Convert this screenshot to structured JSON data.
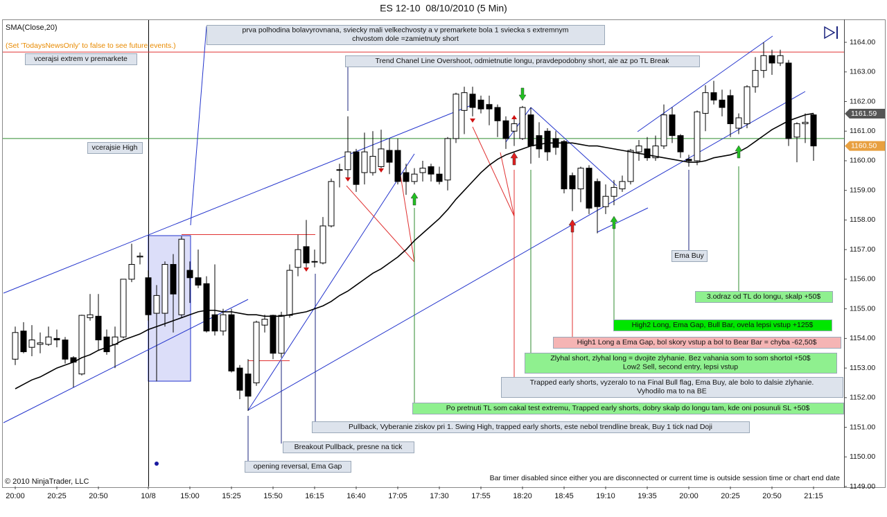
{
  "chart_data": {
    "type": "candlestick",
    "title": "ES 12-10  08/10/2010 (5 Min)",
    "notice": "(Set 'TodaysNewsOnly' to false to see future events.)",
    "copyright": "© 2010 NinjaTrader, LLC",
    "status_text": "Bar timer disabled since either you are disconnected or current time is outside session time or chart end date",
    "categories": [
      "20:00",
      null,
      null,
      null,
      null,
      "20:25",
      null,
      null,
      null,
      null,
      "20:50",
      null,
      null,
      null,
      null,
      null,
      "10/8",
      null,
      null,
      null,
      null,
      "15:00",
      null,
      null,
      null,
      null,
      "15:25",
      null,
      null,
      null,
      null,
      "15:50",
      null,
      null,
      null,
      null,
      "16:15",
      null,
      null,
      null,
      null,
      "16:40",
      null,
      null,
      null,
      null,
      "17:05",
      null,
      null,
      null,
      null,
      "17:30",
      null,
      null,
      null,
      null,
      "17:55",
      null,
      null,
      null,
      null,
      "18:20",
      null,
      null,
      null,
      null,
      "18:45",
      null,
      null,
      null,
      null,
      "19:10",
      null,
      null,
      null,
      null,
      "19:35",
      null,
      null,
      null,
      null,
      "20:00",
      null,
      null,
      null,
      null,
      "20:25",
      null,
      null,
      null,
      null,
      "20:50",
      null,
      null,
      null,
      null,
      "21:15"
    ],
    "open": [
      1153.3,
      1154.25,
      1153.7,
      1153.8,
      1153.8,
      1154.0,
      1153.95,
      1153.35,
      1152.8,
      1154.7,
      1154.75,
      1154.05,
      1153.8,
      1154.05,
      1156.0,
      1156.75,
      1156.05,
      1154.85,
      1154.85,
      1156.5,
      1154.8,
      1156.3,
      1156.05,
      1155.85,
      1154.8,
      1154.25,
      1154.8,
      1153.0,
      1152.8,
      1152.5,
      1154.45,
      1154.78,
      1153.5,
      1154.78,
      1156.4,
      1157.1,
      1156.6,
      1156.55,
      1157.8,
      1159.7,
      1159.7,
      1160.3,
      1159.6,
      1159.6,
      1159.8,
      1160.35,
      1160.35,
      1159.6,
      1159.3,
      1159.6,
      1159.8,
      1159.55,
      1159.35,
      1160.75,
      1161.7,
      1162.25,
      1162.05,
      1161.9,
      1161.8,
      1161.35,
      1161.0,
      1160.75,
      1161.55,
      1160.85,
      1161.0,
      1160.75,
      1160.65,
      1159.5,
      1159.05,
      1159.75,
      1159.3,
      1158.45,
      1158.8,
      1159.05,
      1159.3,
      1160.3,
      1160.4,
      1160.1,
      1160.5,
      1161.55,
      1160.85,
      1160.05,
      1160.0,
      1161.6,
      1162.3,
      1162.05,
      1162.2,
      1161.1,
      1161.25,
      1162.5,
      1163.05,
      1163.55,
      1163.3,
      1163.3,
      1160.8,
      1161.25,
      1161.55
    ],
    "high": [
      1154.4,
      1154.55,
      1154.45,
      1154.2,
      1154.4,
      1154.3,
      1154.05,
      1153.4,
      1154.8,
      1155.5,
      1155.5,
      1154.3,
      1154.4,
      1156.0,
      1157.2,
      1156.9,
      1156.3,
      1155.8,
      1156.6,
      1156.85,
      1157.45,
      1156.6,
      1157.0,
      1156.1,
      1156.5,
      1155.0,
      1155.0,
      1153.1,
      1153.3,
      1154.6,
      1154.8,
      1154.8,
      1154.9,
      1156.5,
      1157.5,
      1158.0,
      1157.0,
      1158.1,
      1159.4,
      1159.9,
      1161.5,
      1160.4,
      1160.95,
      1161.0,
      1161.05,
      1160.75,
      1160.75,
      1159.9,
      1159.75,
      1160.0,
      1159.9,
      1159.8,
      1160.8,
      1162.3,
      1162.5,
      1162.5,
      1162.2,
      1162.2,
      1161.9,
      1161.5,
      1161.5,
      1161.85,
      1161.8,
      1161.3,
      1161.1,
      1161.0,
      1160.7,
      1159.6,
      1159.8,
      1159.85,
      1159.4,
      1159.2,
      1159.35,
      1159.5,
      1160.4,
      1160.7,
      1160.8,
      1160.85,
      1161.9,
      1161.8,
      1160.9,
      1160.2,
      1161.7,
      1162.55,
      1162.7,
      1162.4,
      1162.4,
      1161.6,
      1162.55,
      1163.5,
      1164.0,
      1163.75,
      1163.75,
      1163.4,
      1161.3,
      1161.6,
      1161.6
    ],
    "low": [
      1153.1,
      1153.5,
      1153.4,
      1153.5,
      1153.75,
      1153.7,
      1153.15,
      1152.35,
      1152.75,
      1154.6,
      1153.6,
      1153.45,
      1153.0,
      1154.0,
      1155.9,
      1156.5,
      1154.6,
      1152.55,
      1154.4,
      1154.2,
      1154.7,
      1155.2,
      1155.7,
      1154.2,
      1154.1,
      1154.1,
      1152.85,
      1151.95,
      1151.55,
      1152.4,
      1154.2,
      1153.3,
      1153.35,
      1154.7,
      1156.1,
      1156.4,
      1156.4,
      1156.5,
      1157.75,
      1159.1,
      1159.4,
      1158.95,
      1159.2,
      1159.5,
      1159.75,
      1159.55,
      1159.2,
      1158.85,
      1159.2,
      1159.3,
      1159.3,
      1159.2,
      1159.0,
      1160.6,
      1160.9,
      1161.5,
      1161.6,
      1161.2,
      1160.8,
      1160.4,
      1160.5,
      1160.7,
      1159.9,
      1160.1,
      1160.0,
      1160.2,
      1158.9,
      1158.3,
      1158.6,
      1158.2,
      1157.55,
      1158.2,
      1158.5,
      1158.95,
      1159.2,
      1160.0,
      1160.0,
      1160.0,
      1160.4,
      1160.6,
      1160.1,
      1159.8,
      1159.85,
      1161.0,
      1161.9,
      1161.5,
      1160.8,
      1160.9,
      1161.1,
      1162.3,
      1162.8,
      1162.9,
      1163.2,
      1160.5,
      1159.95,
      1160.6,
      1160.0
    ],
    "close": [
      1154.2,
      1153.55,
      1153.95,
      1153.85,
      1154.05,
      1153.95,
      1153.3,
      1153.2,
      1154.78,
      1154.8,
      1153.95,
      1153.55,
      1154.05,
      1156.0,
      1156.5,
      1156.78,
      1154.8,
      1155.45,
      1156.5,
      1155.5,
      1157.35,
      1156.05,
      1155.8,
      1154.25,
      1154.25,
      1154.8,
      1152.9,
      1152.25,
      1152.05,
      1154.55,
      1154.65,
      1153.5,
      1154.78,
      1156.3,
      1157.0,
      1156.55,
      1156.6,
      1157.8,
      1159.3,
      1159.7,
      1160.3,
      1159.2,
      1160.3,
      1160.15,
      1160.4,
      1159.95,
      1159.3,
      1159.3,
      1159.55,
      1159.75,
      1159.55,
      1159.3,
      1160.75,
      1162.25,
      1162.3,
      1161.8,
      1161.75,
      1161.75,
      1161.35,
      1160.75,
      1161.25,
      1161.8,
      1160.5,
      1160.4,
      1160.3,
      1160.45,
      1159.05,
      1159.05,
      1159.75,
      1158.4,
      1158.45,
      1158.8,
      1159.1,
      1159.3,
      1160.35,
      1160.5,
      1160.1,
      1160.5,
      1161.55,
      1160.85,
      1160.3,
      1160.0,
      1161.65,
      1162.3,
      1162.05,
      1161.8,
      1161.25,
      1161.45,
      1162.5,
      1163.05,
      1163.55,
      1163.3,
      1163.55,
      1160.75,
      1161.25,
      1161.3,
      1160.5
    ],
    "up_color": "#ffffff",
    "down_color": "#000000",
    "series": [
      {
        "name": "SMA(Close,20)",
        "color": "#000000",
        "values": [
          1152.3,
          1152.45,
          1152.6,
          1152.7,
          1152.85,
          1153.0,
          1153.1,
          1153.2,
          1153.35,
          1153.45,
          1153.6,
          1153.7,
          1153.8,
          1153.95,
          1154.05,
          1154.15,
          1154.3,
          1154.4,
          1154.5,
          1154.6,
          1154.7,
          1154.8,
          1154.9,
          1154.95,
          1154.95,
          1154.9,
          1154.9,
          1154.85,
          1154.8,
          1154.8,
          1154.75,
          1154.75,
          1154.75,
          1154.8,
          1154.85,
          1154.9,
          1155.0,
          1155.1,
          1155.25,
          1155.45,
          1155.6,
          1155.8,
          1156.0,
          1156.2,
          1156.35,
          1156.55,
          1156.75,
          1157.0,
          1157.3,
          1157.55,
          1157.8,
          1158.05,
          1158.35,
          1158.7,
          1159.0,
          1159.3,
          1159.6,
          1159.85,
          1160.05,
          1160.2,
          1160.3,
          1160.4,
          1160.5,
          1160.55,
          1160.6,
          1160.6,
          1160.6,
          1160.6,
          1160.55,
          1160.5,
          1160.5,
          1160.45,
          1160.4,
          1160.35,
          1160.3,
          1160.25,
          1160.2,
          1160.15,
          1160.1,
          1160.05,
          1160.0,
          1159.95,
          1159.95,
          1160.0,
          1160.1,
          1160.15,
          1160.2,
          1160.3,
          1160.45,
          1160.65,
          1160.85,
          1161.05,
          1161.2,
          1161.35,
          1161.45,
          1161.55,
          1161.6
        ]
      }
    ],
    "ylim": [
      1149,
      1164.75
    ],
    "yticks": [
      {
        "value": 1149,
        "label": "1149.00"
      },
      {
        "value": 1150,
        "label": "1150.00"
      },
      {
        "value": 1151,
        "label": "1151.00"
      },
      {
        "value": 1152,
        "label": "1152.00"
      },
      {
        "value": 1153,
        "label": "1153.00"
      },
      {
        "value": 1154,
        "label": "1154.00"
      },
      {
        "value": 1155,
        "label": "1155.00"
      },
      {
        "value": 1156,
        "label": "1156.00"
      },
      {
        "value": 1157,
        "label": "1157.00"
      },
      {
        "value": 1158,
        "label": "1158.00"
      },
      {
        "value": 1159,
        "label": "1159.00"
      },
      {
        "value": 1160,
        "label": "1160.00"
      },
      {
        "value": 1161,
        "label": "1161.00"
      },
      {
        "value": 1162,
        "label": "1162.00"
      },
      {
        "value": 1163,
        "label": "1163.00"
      },
      {
        "value": 1164,
        "label": "1164.00"
      }
    ],
    "hlines": [
      {
        "value": 1163.67,
        "color": "#e03030"
      },
      {
        "value": 1160.75,
        "color": "#2e8b2e"
      }
    ],
    "price_markers": [
      {
        "value": 1161.59,
        "label": "1161.59",
        "color": "#555555"
      },
      {
        "value": 1160.5,
        "label": "1160.50",
        "color": "#e8a040"
      }
    ],
    "annotations": [
      {
        "lines": [
          "prva polhodina bolavyrovnana, sviecky mali velkechvosty a v premarkete bola 1 sviecka s extremnym",
          "chvostom dole =zamietnuty short"
        ],
        "color": "#dde3ec"
      },
      {
        "lines": [
          "vcerajsi extrem v premarkete"
        ],
        "color": "#dde3ec"
      },
      {
        "lines": [
          "Trend Chanel Line Overshoot, odmietnutie longu, pravdepodobny short, ale az po TL Break"
        ],
        "color": "#dde3ec"
      },
      {
        "lines": [
          "vcerajsie High"
        ],
        "color": "#dde3ec"
      },
      {
        "lines": [
          "Ema Buy"
        ],
        "color": "#dde3ec"
      },
      {
        "lines": [
          "3.odraz od TL do longu, skalp +50$"
        ],
        "color": "#8ff08f"
      },
      {
        "lines": [
          "High2 Long, Ema Gap, Bull Bar, ovela lepsi vstup +125$"
        ],
        "color": "#00e600"
      },
      {
        "lines": [
          "High1 Long a Ema Gap, bol skory vstup a bol to Bear Bar = chyba -62,50$"
        ],
        "color": "#f5b4b4"
      },
      {
        "lines": [
          "Zlyhal short, zlyhal long = dvojite zlyhanie. Bez vahania som to som shortol +50$",
          "Low2 Sell, second entry, lepsi vstup"
        ],
        "color": "#8ff08f"
      },
      {
        "lines": [
          "Trapped early shorts, vyzeralo to na Final Bull flag, Ema Buy, ale bolo to dalsie zlyhanie.",
          "Vyhodilo ma to na BE"
        ],
        "color": "#dde3ec"
      },
      {
        "lines": [
          "Po pretnuti TL som cakal test extremu, Trapped early shorts, dobry skalp do longu tam, kde oni posunuli SL +50$"
        ],
        "color": "#8ff08f"
      },
      {
        "lines": [
          "Pullback, Vyberanie ziskov pri 1. Swing High, trapped early shorts, este nebol trendline break, Buy 1 tick nad Doji"
        ],
        "color": "#dde3ec"
      },
      {
        "lines": [
          "Breakout Pullback, presne na tick"
        ],
        "color": "#dde3ec"
      },
      {
        "lines": [
          "opening reversal, Ema Gap"
        ],
        "color": "#dde3ec"
      }
    ]
  }
}
